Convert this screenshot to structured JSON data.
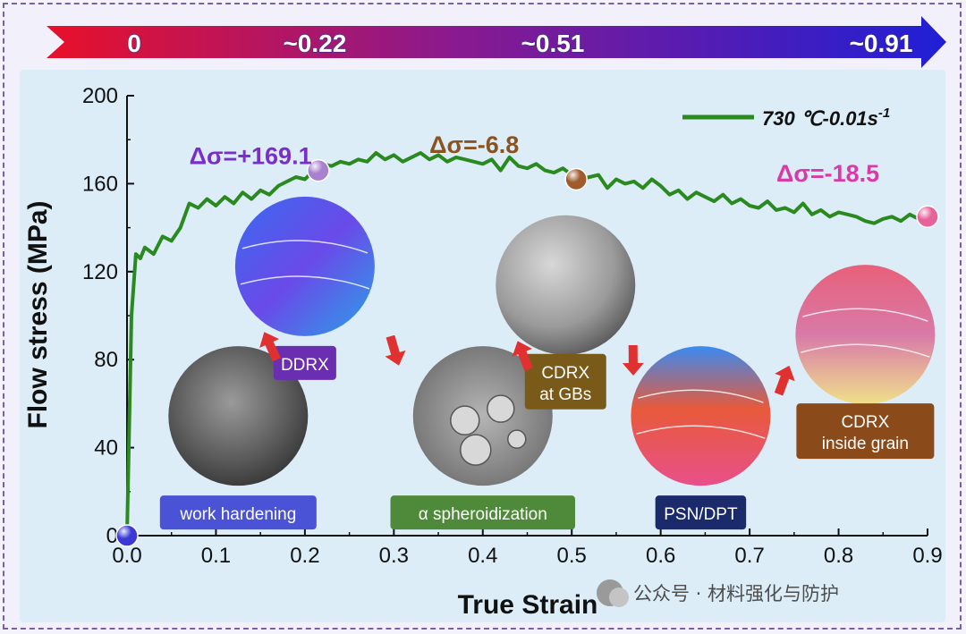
{
  "strain_arrow": {
    "labels": [
      {
        "text": "0",
        "x": 0.0
      },
      {
        "text": "~0.22",
        "x": 0.22
      },
      {
        "text": "~0.51",
        "x": 0.51
      },
      {
        "text": "~0.91",
        "x": 0.91
      }
    ]
  },
  "legend": {
    "text": "730 ℃-0.01s",
    "sup": "-1",
    "color": "#2a8a1f"
  },
  "annotations": [
    {
      "text": "Δσ=+169.1",
      "color": "#7a2fc8",
      "x": 0.07,
      "y": 169
    },
    {
      "text": "Δσ=-6.8",
      "color": "#8a5320",
      "x": 0.34,
      "y": 174
    },
    {
      "text": "Δσ=-18.5",
      "color": "#d93aa8",
      "x": 0.73,
      "y": 161
    }
  ],
  "markers": [
    {
      "x": 0.0,
      "y": 0,
      "color": "#3b38d8"
    },
    {
      "x": 0.215,
      "y": 166,
      "color": "#a97fd0"
    },
    {
      "x": 0.505,
      "y": 162,
      "color": "#a05a2c"
    },
    {
      "x": 0.9,
      "y": 145,
      "color": "#e8629a"
    }
  ],
  "stages": [
    {
      "label": "work hardening",
      "bg": "#4a52d6",
      "micro": "gray",
      "x": 0.125,
      "y": 10.5
    },
    {
      "label": "DDRX",
      "bg": "#6a2fb0",
      "micro": "ebsd-blue",
      "x": 0.2,
      "y": 78.5
    },
    {
      "label": "α spheroidization",
      "bg": "#4f8a3a",
      "micro": "gray-particles",
      "x": 0.4,
      "y": 10.5
    },
    {
      "label": "CDRX\nat GBs",
      "bg": "#7a5a18",
      "micro": "gray-2",
      "x": 0.493,
      "y": 70
    },
    {
      "label": "PSN/DPT",
      "bg": "#1a2a6a",
      "micro": "ebsd-multi",
      "x": 0.645,
      "y": 10.5
    },
    {
      "label": "CDRX\ninside grain",
      "bg": "#8a4a1a",
      "micro": "ebsd-pink",
      "x": 0.83,
      "y": 47.5
    }
  ],
  "watermark": "公众号 · 材料强化与防护",
  "chart_data": {
    "type": "line",
    "xlabel": "True Strain",
    "ylabel": "Flow stress (MPa)",
    "xlim": [
      0.0,
      0.9
    ],
    "ylim": [
      0,
      200
    ],
    "xticks": [
      "0.0",
      "0.1",
      "0.2",
      "0.3",
      "0.4",
      "0.5",
      "0.6",
      "0.7",
      "0.8",
      "0.9"
    ],
    "yticks": [
      "0",
      "40",
      "80",
      "120",
      "160",
      "200"
    ],
    "series": [
      {
        "name": "730 ℃-0.01s-1",
        "color": "#2a8a1f",
        "x": [
          0.0,
          0.005,
          0.01,
          0.015,
          0.02,
          0.03,
          0.04,
          0.05,
          0.06,
          0.07,
          0.08,
          0.09,
          0.1,
          0.11,
          0.12,
          0.13,
          0.14,
          0.15,
          0.16,
          0.17,
          0.18,
          0.19,
          0.2,
          0.21,
          0.22,
          0.23,
          0.24,
          0.25,
          0.26,
          0.27,
          0.28,
          0.29,
          0.3,
          0.31,
          0.32,
          0.33,
          0.34,
          0.35,
          0.36,
          0.37,
          0.38,
          0.39,
          0.4,
          0.41,
          0.42,
          0.43,
          0.44,
          0.45,
          0.46,
          0.47,
          0.48,
          0.49,
          0.5,
          0.51,
          0.52,
          0.53,
          0.54,
          0.55,
          0.56,
          0.57,
          0.58,
          0.59,
          0.6,
          0.61,
          0.62,
          0.63,
          0.64,
          0.65,
          0.66,
          0.67,
          0.68,
          0.69,
          0.7,
          0.71,
          0.72,
          0.73,
          0.74,
          0.75,
          0.76,
          0.77,
          0.78,
          0.79,
          0.8,
          0.81,
          0.82,
          0.83,
          0.84,
          0.85,
          0.86,
          0.87,
          0.88,
          0.89,
          0.9
        ],
        "y": [
          0,
          100,
          128,
          126,
          131,
          128,
          136,
          134,
          140,
          151,
          149,
          153,
          150,
          154,
          151,
          156,
          153,
          157,
          155,
          159,
          161,
          163,
          162,
          166,
          169,
          168,
          170,
          169,
          171,
          170,
          174,
          171,
          173,
          170,
          172,
          174,
          171,
          173,
          170,
          172,
          171,
          170,
          169,
          171,
          166,
          172,
          168,
          167,
          169,
          166,
          165,
          167,
          164,
          162,
          163,
          164,
          158,
          162,
          160,
          161,
          158,
          162,
          159,
          155,
          157,
          153,
          156,
          154,
          152,
          155,
          151,
          153,
          150,
          149,
          152,
          148,
          149,
          147,
          151,
          146,
          148,
          145,
          147,
          146,
          145,
          143,
          142,
          144,
          145,
          143,
          146,
          144,
          145
        ]
      }
    ]
  }
}
